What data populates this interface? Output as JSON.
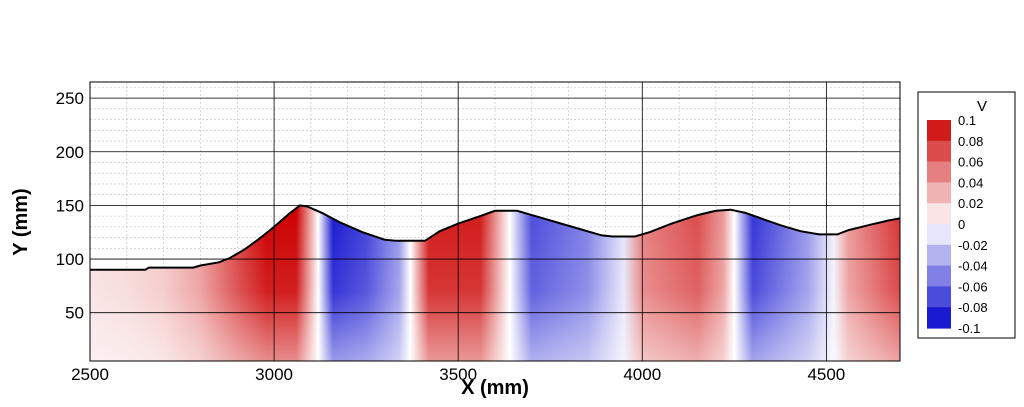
{
  "chart_data": {
    "type": "heatmap",
    "title": "",
    "xlabel": "X (mm)",
    "ylabel": "Y (mm)",
    "xlim": [
      2500,
      4700
    ],
    "ylim": [
      5,
      265
    ],
    "xticks": [
      2500,
      3000,
      3500,
      4000,
      4500
    ],
    "yticks": [
      50,
      100,
      150,
      200,
      250
    ],
    "xtick_labels": [
      "2500",
      "3000",
      "3500",
      "4000",
      "4500"
    ],
    "ytick_labels": [
      "50",
      "100",
      "150",
      "200",
      "250"
    ],
    "grid": true,
    "minor_grid": true,
    "colorbar": {
      "title": "V",
      "levels": [
        0.1,
        0.08,
        0.06,
        0.04,
        0.02,
        0,
        -0.02,
        -0.04,
        -0.06,
        -0.08,
        -0.1
      ],
      "labels": [
        "0.1",
        "0.08",
        "0.06",
        "0.04",
        "0.02",
        "0",
        "-0.02",
        "-0.04",
        "-0.06",
        "-0.08",
        "-0.1"
      ],
      "color_max": "#cc0000",
      "color_zero": "#ffffff",
      "color_min": "#0000cc",
      "placement": "right"
    },
    "surface_profile": [
      [
        2500,
        90
      ],
      [
        2650,
        90
      ],
      [
        2660,
        92
      ],
      [
        2780,
        92
      ],
      [
        2800,
        94
      ],
      [
        2850,
        97
      ],
      [
        2880,
        101
      ],
      [
        2920,
        109
      ],
      [
        2960,
        119
      ],
      [
        3000,
        130
      ],
      [
        3040,
        142
      ],
      [
        3070,
        150
      ],
      [
        3090,
        149
      ],
      [
        3130,
        143
      ],
      [
        3180,
        134
      ],
      [
        3240,
        125
      ],
      [
        3300,
        118
      ],
      [
        3330,
        117
      ],
      [
        3410,
        117
      ],
      [
        3450,
        126
      ],
      [
        3500,
        133
      ],
      [
        3560,
        140
      ],
      [
        3600,
        145
      ],
      [
        3660,
        145
      ],
      [
        3700,
        141
      ],
      [
        3760,
        135
      ],
      [
        3830,
        128
      ],
      [
        3890,
        122
      ],
      [
        3920,
        121
      ],
      [
        3980,
        121
      ],
      [
        4020,
        125
      ],
      [
        4080,
        133
      ],
      [
        4150,
        141
      ],
      [
        4200,
        145
      ],
      [
        4240,
        146
      ],
      [
        4280,
        143
      ],
      [
        4330,
        137
      ],
      [
        4380,
        131
      ],
      [
        4430,
        126
      ],
      [
        4480,
        123
      ],
      [
        4530,
        123
      ],
      [
        4560,
        127
      ],
      [
        4620,
        132
      ],
      [
        4670,
        136
      ],
      [
        4700,
        138
      ]
    ],
    "velocity_field": [
      {
        "x": 2500,
        "v": 0.012
      },
      {
        "x": 2600,
        "v": 0.015
      },
      {
        "x": 2700,
        "v": 0.022
      },
      {
        "x": 2800,
        "v": 0.04
      },
      {
        "x": 2900,
        "v": 0.075
      },
      {
        "x": 2980,
        "v": 0.1
      },
      {
        "x": 3060,
        "v": 0.1
      },
      {
        "x": 3120,
        "v": 0.0
      },
      {
        "x": 3160,
        "v": -0.09
      },
      {
        "x": 3250,
        "v": -0.075
      },
      {
        "x": 3340,
        "v": -0.04
      },
      {
        "x": 3370,
        "v": 0.0
      },
      {
        "x": 3420,
        "v": 0.09
      },
      {
        "x": 3560,
        "v": 0.09
      },
      {
        "x": 3640,
        "v": 0.0
      },
      {
        "x": 3700,
        "v": -0.07
      },
      {
        "x": 3850,
        "v": -0.05
      },
      {
        "x": 3950,
        "v": -0.01
      },
      {
        "x": 4000,
        "v": 0.05
      },
      {
        "x": 4150,
        "v": 0.07
      },
      {
        "x": 4220,
        "v": 0.04
      },
      {
        "x": 4250,
        "v": 0.0
      },
      {
        "x": 4300,
        "v": -0.08
      },
      {
        "x": 4450,
        "v": -0.04
      },
      {
        "x": 4520,
        "v": -0.005
      },
      {
        "x": 4560,
        "v": 0.04
      },
      {
        "x": 4700,
        "v": 0.08
      }
    ]
  }
}
